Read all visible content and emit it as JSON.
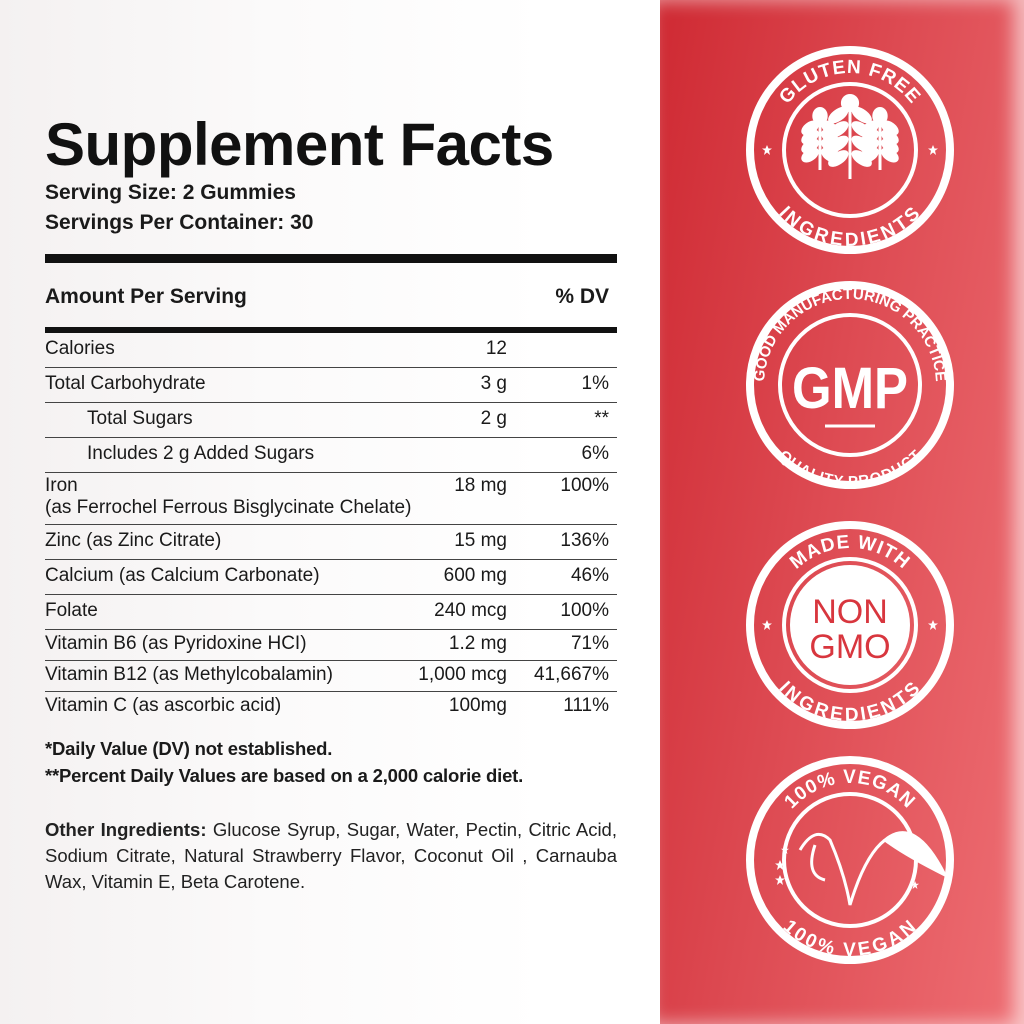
{
  "title": "Supplement Facts",
  "serving_size": "Serving Size: 2 Gummies",
  "servings_per_container": "Servings Per Container: 30",
  "header": {
    "amount": "Amount Per Serving",
    "dv": "% DV"
  },
  "rows": [
    {
      "name": "Calories",
      "amount": "12",
      "dv": ""
    },
    {
      "name": "Total Carbohydrate",
      "amount": "3 g",
      "dv": "1%"
    },
    {
      "name": "Total Sugars",
      "amount": "2 g",
      "dv": "**"
    },
    {
      "name": "Includes 2 g Added Sugars",
      "amount": "",
      "dv": "6%"
    },
    {
      "name": "Iron",
      "detail": "(as Ferrochel Ferrous Bisglycinate Chelate)",
      "amount": "18 mg",
      "dv": "100%"
    },
    {
      "name": "Zinc (as Zinc Citrate)",
      "amount": "15 mg",
      "dv": "136%"
    },
    {
      "name": "Calcium (as Calcium Carbonate)",
      "amount": "600 mg",
      "dv": "46%"
    },
    {
      "name": "Folate",
      "amount": "240 mcg",
      "dv": "100%"
    },
    {
      "name": "Vitamin B6 (as Pyridoxine HCI)",
      "amount": "1.2 mg",
      "dv": "71%"
    },
    {
      "name": "Vitamin B12 (as Methylcobalamin)",
      "amount": "1,000 mcg",
      "dv": "41,667%"
    },
    {
      "name": "Vitamin C (as ascorbic acid)",
      "amount": "100mg",
      "dv": "111%"
    }
  ],
  "notes": [
    "*Daily Value (DV) not established.",
    "**Percent Daily Values are based on a 2,000 calorie diet."
  ],
  "other_ingredients": {
    "label": "Other Ingredients:",
    "text": " Glucose Syrup, Sugar, Water, Pectin, Citric Acid, Sodium Citrate, Natural Strawberry Flavor, Coconut Oil , Carnauba Wax, Vitamin E, Beta Carotene."
  },
  "badges": [
    {
      "top": "GLUTEN FREE",
      "bottom": "INGREDIENTS",
      "icon": "wheat-icon"
    },
    {
      "top": "GOOD MANUFACTURING PRACTICE",
      "bottom": "QUALITY PRODUCT",
      "center": "GMP"
    },
    {
      "top": "MADE WITH",
      "bottom": "INGREDIENTS",
      "center1": "NON",
      "center2": "GMO"
    },
    {
      "top": "100% VEGAN",
      "bottom": "100% VEGAN",
      "icon": "vegan-v-leaf-icon"
    }
  ],
  "colors": {
    "red": "#d8363e",
    "red_light": "#ee6e73",
    "text": "#1a1a1a"
  }
}
